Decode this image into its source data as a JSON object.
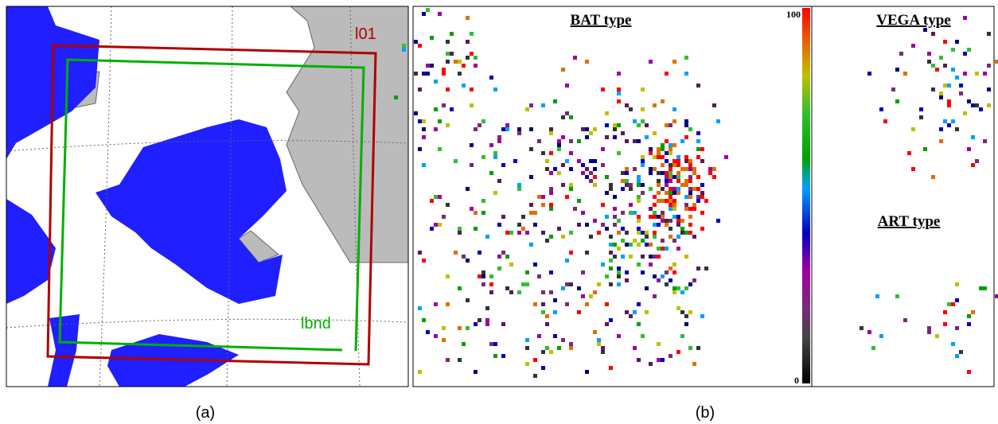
{
  "panel_a": {
    "outer_domain_label": "l01",
    "inner_domain_label": "lbnd",
    "caption": "(a)"
  },
  "panel_b": {
    "titles": [
      "BAT type",
      "VEGA type",
      "ART type"
    ],
    "colorbar": {
      "max": 100,
      "min": 0
    },
    "caption": "(b)"
  }
}
